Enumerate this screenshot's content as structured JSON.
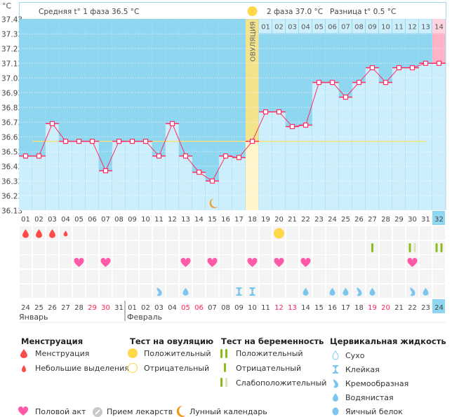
{
  "header": {
    "unit": "°C",
    "phase1_avg": "Средняя t° 1 фаза 36.5 °C",
    "phase2_avg": "2 фаза 37.0 °C",
    "difference": "Разница t° 0.5 °C",
    "ovulation_label": "ОВУЛЯЦИЯ"
  },
  "chart_data": {
    "type": "line",
    "ylim": [
      36.13,
      37.43
    ],
    "yticks": [
      "37.43",
      "37.33",
      "37.23",
      "37.13",
      "37.03",
      "36.93",
      "36.83",
      "36.73",
      "36.63",
      "36.53",
      "36.43",
      "36.33",
      "36.23",
      "36.13"
    ],
    "grid": true,
    "cycle_days": [
      "01",
      "02",
      "03",
      "04",
      "05",
      "06",
      "07",
      "08",
      "09",
      "10",
      "11",
      "12",
      "13",
      "14",
      "15",
      "16",
      "17",
      "18",
      "19",
      "20",
      "21",
      "22",
      "23",
      "24",
      "25",
      "26",
      "27",
      "28",
      "29",
      "30",
      "31",
      "32"
    ],
    "temperatures": [
      36.5,
      36.5,
      36.72,
      36.6,
      36.6,
      36.6,
      36.4,
      36.6,
      36.6,
      36.6,
      36.5,
      36.72,
      36.5,
      36.39,
      36.33,
      36.5,
      36.49,
      36.6,
      36.8,
      36.8,
      36.7,
      36.71,
      37.0,
      37.0,
      36.9,
      37.0,
      37.1,
      37.0,
      37.1,
      37.1,
      37.13,
      37.13
    ],
    "cover_line": 36.6,
    "ovulation_day": 18,
    "luteal_days": [
      "01",
      "02",
      "03",
      "04",
      "05",
      "06",
      "07",
      "08",
      "09",
      "10",
      "11",
      "12",
      "13",
      "14"
    ],
    "current_day": 32,
    "moon_day": 15
  },
  "dates": [
    "24",
    "25",
    "26",
    "27",
    "28",
    "29",
    "30",
    "31",
    "01",
    "02",
    "03",
    "04",
    "05",
    "06",
    "07",
    "08",
    "09",
    "10",
    "11",
    "12",
    "13",
    "14",
    "15",
    "16",
    "17",
    "18",
    "19",
    "20",
    "21",
    "22",
    "23",
    "24"
  ],
  "weekend_dates": [
    5,
    6,
    12,
    13,
    19,
    20,
    26,
    27
  ],
  "months": [
    "Январь",
    "Февраль"
  ],
  "colors": {
    "plot_bg": "#8fd6f1",
    "bar": "#cdeefb",
    "line": "#ff2e63",
    "cover": "#f7e27a",
    "ovulation": "#f3e38a",
    "pink": "#ffb3c6",
    "weekend": "#ff1f4f"
  },
  "markers": {
    "menstruation": [
      {
        "day": 1,
        "type": "heavy"
      },
      {
        "day": 2,
        "type": "heavy"
      },
      {
        "day": 3,
        "type": "heavy"
      },
      {
        "day": 4,
        "type": "light"
      }
    ],
    "ovulation_test": [
      {
        "day": 20,
        "type": "positive"
      }
    ],
    "pregnancy_test": [
      {
        "day": 27,
        "type": "negative"
      },
      {
        "day": 30,
        "type": "weak"
      },
      {
        "day": 32,
        "type": "positive"
      }
    ],
    "intercourse": [
      5,
      7,
      13,
      15,
      18,
      20,
      22,
      30
    ],
    "cervical": [
      {
        "day": 11,
        "type": "creamy"
      },
      {
        "day": 13,
        "type": "watery"
      },
      {
        "day": 17,
        "type": "sticky"
      },
      {
        "day": 18,
        "type": "sticky"
      },
      {
        "day": 22,
        "type": "watery"
      },
      {
        "day": 24,
        "type": "watery"
      },
      {
        "day": 25,
        "type": "watery"
      },
      {
        "day": 26,
        "type": "creamy"
      },
      {
        "day": 27,
        "type": "watery"
      },
      {
        "day": 30,
        "type": "creamy"
      },
      {
        "day": 31,
        "type": "watery"
      }
    ]
  },
  "legend": {
    "menstruation": {
      "title": "Менструация",
      "items": [
        "Менструация",
        "Небольшие выделения"
      ]
    },
    "ovulation_test": {
      "title": "Тест на овуляцию",
      "items": [
        "Положительный",
        "Отрицательный"
      ]
    },
    "pregnancy_test": {
      "title": "Тест на беременность",
      "items": [
        "Положительный",
        "Отрицательный",
        "Слабоположительный"
      ]
    },
    "cervical": {
      "title": "Цервикальная жидкость",
      "items": [
        "Сухо",
        "Клейкая",
        "Кремообразная",
        "Водянистая",
        "Яичный белок"
      ]
    },
    "other": [
      "Половой акт",
      "Прием лекарств",
      "Лунный календарь"
    ]
  }
}
